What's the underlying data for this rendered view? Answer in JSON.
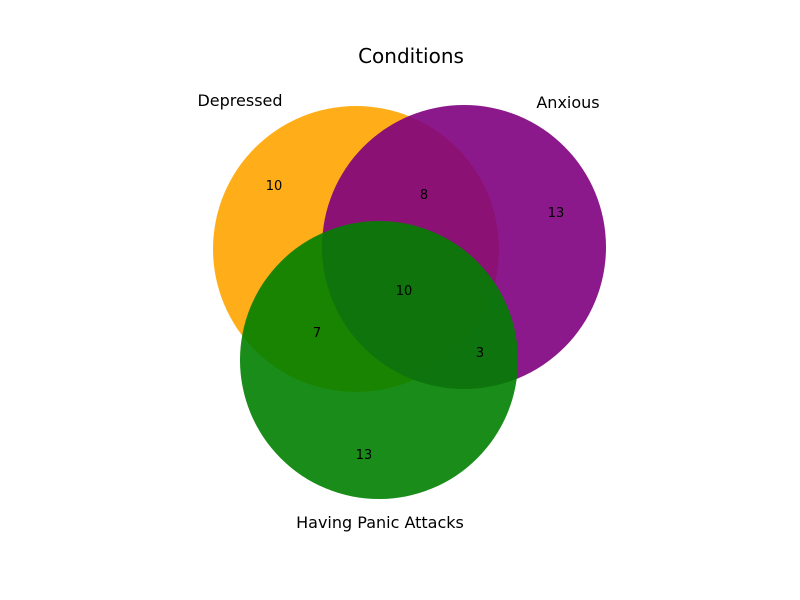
{
  "title": "Conditions",
  "sets": [
    {
      "id": "A",
      "name": "Depressed",
      "color": "#FFA500"
    },
    {
      "id": "B",
      "name": "Anxious",
      "color": "#800080"
    },
    {
      "id": "C",
      "name": "Having Panic Attacks",
      "color": "#008000"
    }
  ],
  "regions": [
    {
      "sets": [
        "A"
      ],
      "count": "10"
    },
    {
      "sets": [
        "B"
      ],
      "count": "13"
    },
    {
      "sets": [
        "A",
        "B"
      ],
      "count": "8"
    },
    {
      "sets": [
        "C"
      ],
      "count": "13"
    },
    {
      "sets": [
        "A",
        "C"
      ],
      "count": "7"
    },
    {
      "sets": [
        "B",
        "C"
      ],
      "count": "3"
    },
    {
      "sets": [
        "A",
        "B",
        "C"
      ],
      "count": "10"
    }
  ],
  "chart_data": {
    "type": "venn",
    "title": "Conditions",
    "set_names": [
      "Depressed",
      "Anxious",
      "Having Panic Attacks"
    ],
    "set_colors": [
      "#FFA500",
      "#800080",
      "#008000"
    ],
    "subsets": {
      "Depressed only": 10,
      "Anxious only": 13,
      "Having Panic Attacks only": 13,
      "Depressed & Anxious only": 8,
      "Depressed & Having Panic Attacks only": 7,
      "Anxious & Having Panic Attacks only": 3,
      "All three": 10
    }
  }
}
